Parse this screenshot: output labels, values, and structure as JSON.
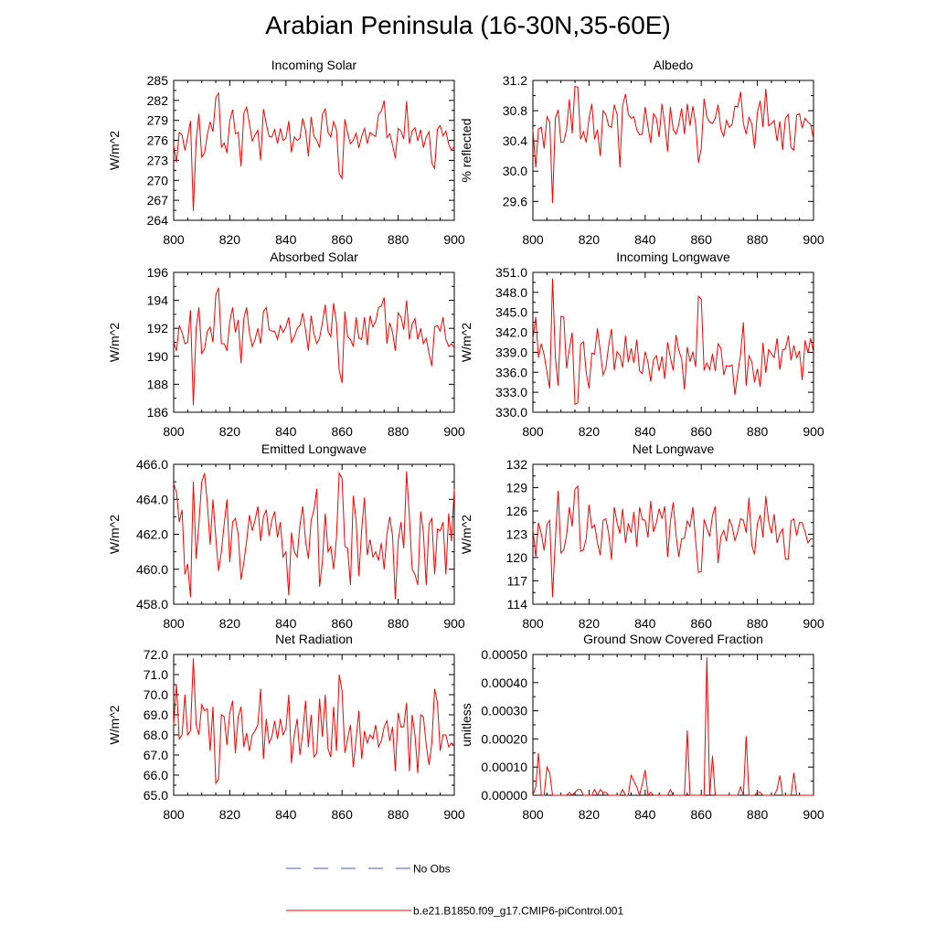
{
  "figure": {
    "title": "Arabian Peninsula (16-30N,35-60E)",
    "line_color": "#ff0000",
    "obs_color": "#4a5ab0"
  },
  "legend": {
    "obs_label": "No Obs",
    "model_label": "b.e21.B1850.f09_g17.CMIP6-piControl.001"
  },
  "chart_data": [
    {
      "type": "line",
      "title": "Incoming Solar",
      "ylabel": "W/m^2",
      "xlim": [
        800,
        900
      ],
      "ylim": [
        264,
        285
      ],
      "yticks": [
        "285",
        "282",
        "279",
        "276",
        "273",
        "270",
        "267",
        "264"
      ],
      "ytick_values": [
        285,
        282,
        279,
        276,
        273,
        270,
        267,
        264
      ],
      "xticks": [
        "800",
        "820",
        "840",
        "860",
        "880",
        "900"
      ],
      "xtick_values": [
        800,
        820,
        840,
        860,
        880,
        900
      ],
      "start_x": 800,
      "values": [
        275.3,
        272.7,
        277.2,
        276.8,
        274.5,
        276.5,
        278.9,
        265.4,
        276.0,
        280.0,
        273.5,
        274.1,
        276.8,
        278.8,
        277.3,
        282.4,
        283.1,
        275.0,
        275.6,
        274.1,
        279.0,
        280.6,
        277.0,
        277.2,
        272.1,
        280.1,
        281.0,
        278.5,
        275.9,
        276.8,
        277.5,
        273.0,
        280.7,
        278.5,
        276.6,
        276.5,
        277.6,
        275.5,
        277.8,
        276.0,
        276.3,
        278.9,
        274.2,
        276.5,
        276.0,
        276.3,
        279.3,
        277.5,
        273.6,
        279.5,
        276.6,
        276.0,
        274.9,
        279.9,
        280.7,
        277.2,
        276.5,
        278.8,
        277.6,
        271.0,
        270.3,
        279.2,
        277.1,
        275.5,
        276.0,
        277.1,
        274.9,
        276.6,
        277.8,
        275.5,
        277.2,
        276.8,
        276.6,
        279.9,
        280.4,
        282.0,
        276.4,
        277.0,
        275.3,
        273.3,
        277.8,
        277.4,
        276.2,
        281.9,
        275.5,
        277.4,
        277.9,
        275.9,
        277.6,
        274.9,
        276.5,
        277.3,
        272.6,
        271.8,
        277.7,
        278.2,
        276.7,
        277.4,
        275.4,
        274.5,
        275.1
      ]
    },
    {
      "type": "line",
      "title": "Albedo",
      "ylabel": "% reflected",
      "xlim": [
        800,
        900
      ],
      "ylim": [
        29.35,
        31.2
      ],
      "yticks": [
        "31.2",
        "30.8",
        "30.4",
        "30.0",
        "29.6"
      ],
      "ytick_values": [
        31.2,
        30.8,
        30.4,
        30.0,
        29.6
      ],
      "xticks": [
        "800",
        "820",
        "840",
        "860",
        "880",
        "900"
      ],
      "xtick_values": [
        800,
        820,
        840,
        860,
        880,
        900
      ],
      "start_x": 800,
      "values": [
        30.55,
        30.05,
        30.56,
        30.58,
        30.3,
        30.72,
        30.65,
        29.58,
        30.7,
        30.81,
        30.38,
        30.39,
        30.55,
        30.95,
        30.5,
        31.12,
        31.11,
        30.42,
        30.52,
        30.38,
        30.7,
        30.89,
        30.42,
        30.55,
        30.2,
        30.8,
        30.75,
        30.6,
        30.58,
        30.88,
        30.75,
        30.05,
        30.87,
        31.02,
        30.75,
        30.7,
        30.72,
        30.55,
        30.48,
        30.49,
        30.85,
        30.59,
        30.37,
        30.76,
        30.7,
        30.45,
        30.89,
        30.61,
        30.26,
        30.85,
        30.55,
        30.49,
        30.62,
        30.83,
        30.49,
        30.89,
        30.6,
        30.86,
        30.62,
        30.11,
        30.3,
        30.96,
        30.72,
        30.65,
        30.63,
        30.7,
        30.88,
        30.55,
        30.46,
        30.67,
        30.58,
        30.62,
        30.86,
        30.85,
        31.05,
        30.63,
        30.49,
        30.71,
        30.63,
        30.3,
        30.78,
        30.93,
        30.58,
        31.09,
        30.6,
        30.63,
        30.67,
        30.4,
        30.66,
        30.28,
        30.7,
        30.75,
        30.31,
        30.28,
        30.74,
        30.76,
        30.57,
        30.7,
        30.65,
        30.62,
        30.42
      ]
    },
    {
      "type": "line",
      "title": "Absorbed Solar",
      "ylabel": "W/m^2",
      "xlim": [
        800,
        900
      ],
      "ylim": [
        186,
        196
      ],
      "yticks": [
        "196",
        "194",
        "192",
        "190",
        "188",
        "186"
      ],
      "ytick_values": [
        196,
        194,
        192,
        190,
        188,
        186
      ],
      "xticks": [
        "800",
        "820",
        "840",
        "860",
        "880",
        "900"
      ],
      "xtick_values": [
        800,
        820,
        840,
        860,
        880,
        900
      ],
      "start_x": 800,
      "values": [
        191.0,
        190.4,
        192.2,
        191.7,
        190.9,
        191.0,
        193.3,
        186.5,
        192.0,
        193.5,
        190.2,
        190.5,
        191.8,
        192.1,
        191.0,
        194.4,
        194.9,
        190.9,
        190.9,
        190.4,
        192.5,
        193.5,
        191.7,
        192.6,
        189.5,
        192.7,
        193.5,
        191.7,
        190.7,
        191.2,
        192.0,
        190.9,
        193.2,
        193.5,
        191.9,
        191.8,
        191.8,
        191.2,
        192.2,
        191.7,
        192.1,
        192.8,
        191.0,
        191.4,
        192.0,
        192.2,
        193.1,
        191.9,
        190.4,
        192.9,
        191.6,
        190.9,
        191.3,
        192.4,
        193.7,
        191.8,
        191.4,
        193.8,
        192.4,
        189.0,
        188.1,
        193.2,
        191.4,
        191.2,
        190.7,
        192.8,
        191.3,
        191.2,
        192.8,
        190.8,
        192.9,
        192.1,
        192.5,
        193.5,
        193.6,
        194.2,
        190.9,
        192.4,
        191.7,
        190.4,
        193.1,
        192.8,
        191.9,
        194.0,
        191.2,
        192.3,
        192.7,
        191.2,
        192.0,
        190.9,
        191.3,
        190.2,
        189.3,
        192.1,
        192.2,
        191.8,
        192.8,
        191.2,
        190.7,
        190.9,
        190.6
      ]
    },
    {
      "type": "line",
      "title": "Incoming Longwave",
      "ylabel": "W/m^2",
      "xlim": [
        800,
        900
      ],
      "ylim": [
        330,
        351
      ],
      "yticks": [
        "351.0",
        "348.0",
        "345.0",
        "342.0",
        "339.0",
        "336.0",
        "333.0",
        "330.0"
      ],
      "ytick_values": [
        351,
        348,
        345,
        342,
        339,
        336,
        333,
        330
      ],
      "xticks": [
        "800",
        "820",
        "840",
        "860",
        "880",
        "900"
      ],
      "xtick_values": [
        800,
        820,
        840,
        860,
        880,
        900
      ],
      "start_x": 800,
      "values": [
        341.0,
        344.3,
        338.2,
        340.3,
        338.6,
        336.0,
        333.6,
        350.1,
        338.2,
        334.0,
        344.4,
        344.3,
        336.6,
        339.5,
        342.0,
        331.2,
        331.4,
        340.2,
        340.6,
        336.0,
        333.6,
        338.9,
        338.7,
        342.6,
        339.2,
        335.6,
        336.6,
        340.0,
        342.5,
        336.3,
        339.1,
        338.5,
        336.7,
        341.5,
        337.5,
        339.6,
        337.4,
        340.9,
        336.2,
        335.8,
        339.1,
        337.5,
        334.6,
        337.9,
        338.5,
        336.2,
        338.4,
        335.0,
        340.5,
        338.2,
        336.3,
        341.6,
        339.3,
        338.0,
        333.4,
        339.8,
        337.6,
        339.1,
        336.8,
        347.4,
        347.0,
        336.3,
        337.4,
        336.4,
        338.8,
        336.2,
        340.3,
        339.6,
        335.6,
        337.0,
        336.9,
        337.1,
        332.6,
        335.8,
        338.7,
        343.5,
        334.0,
        338.5,
        337.6,
        334.5,
        336.5,
        333.8,
        340.4,
        335.9,
        339.4,
        338.8,
        338.2,
        341.1,
        336.4,
        339.4,
        339.5,
        341.5,
        337.8,
        340.0,
        338.2,
        339.2,
        334.8,
        340.8,
        338.9,
        341.1,
        339.0
      ]
    },
    {
      "type": "line",
      "title": "Emitted Longwave",
      "ylabel": "W/m^2",
      "xlim": [
        800,
        900
      ],
      "ylim": [
        458,
        466
      ],
      "yticks": [
        "466.0",
        "464.0",
        "462.0",
        "460.0",
        "458.0"
      ],
      "ytick_values": [
        466,
        464,
        462,
        460,
        458
      ],
      "xticks": [
        "800",
        "820",
        "840",
        "860",
        "880",
        "900"
      ],
      "xtick_values": [
        800,
        820,
        840,
        860,
        880,
        900
      ],
      "start_x": 800,
      "values": [
        464.9,
        464.4,
        462.7,
        463.4,
        459.7,
        460.3,
        458.4,
        465.0,
        460.6,
        462.6,
        465.0,
        465.5,
        463.8,
        461.4,
        464.0,
        461.8,
        459.9,
        461.0,
        462.6,
        464.0,
        460.4,
        462.7,
        462.9,
        462.0,
        459.4,
        460.4,
        461.6,
        463.1,
        462.2,
        462.8,
        463.6,
        461.6,
        463.0,
        463.4,
        461.9,
        462.8,
        463.3,
        461.8,
        462.7,
        460.7,
        461.0,
        458.5,
        462.1,
        461.0,
        460.7,
        462.5,
        463.6,
        461.6,
        460.6,
        462.8,
        463.4,
        464.6,
        459.0,
        460.4,
        463.2,
        461.0,
        461.3,
        460.0,
        461.8,
        465.5,
        465.2,
        461.3,
        461.2,
        459.1,
        464.2,
        462.8,
        459.6,
        462.3,
        464.1,
        460.8,
        461.7,
        460.7,
        461.0,
        460.5,
        461.5,
        460.0,
        462.0,
        463.0,
        461.9,
        458.3,
        461.6,
        462.7,
        461.2,
        465.6,
        463.0,
        460.0,
        459.7,
        459.1,
        463.3,
        462.1,
        459.1,
        462.6,
        462.9,
        459.7,
        462.3,
        462.2,
        462.7,
        459.7,
        463.2,
        461.6,
        464.6
      ]
    },
    {
      "type": "line",
      "title": "Net Longwave",
      "ylabel": "W/m^2",
      "xlim": [
        800,
        900
      ],
      "ylim": [
        114,
        132
      ],
      "yticks": [
        "132",
        "129",
        "126",
        "123",
        "120",
        "117",
        "114"
      ],
      "ytick_values": [
        132,
        129,
        126,
        123,
        120,
        117,
        114
      ],
      "xticks": [
        "800",
        "820",
        "840",
        "860",
        "880",
        "900"
      ],
      "xtick_values": [
        800,
        820,
        840,
        860,
        880,
        900
      ],
      "start_x": 800,
      "values": [
        123.7,
        120.1,
        124.5,
        123.1,
        120.9,
        124.3,
        124.8,
        114.9,
        122.4,
        128.6,
        120.6,
        121.0,
        122.8,
        126.5,
        124.0,
        128.8,
        129.2,
        120.8,
        121.0,
        122.4,
        126.8,
        123.8,
        124.2,
        121.9,
        120.3,
        124.8,
        125.0,
        123.1,
        119.7,
        126.5,
        124.5,
        123.1,
        126.3,
        121.9,
        124.4,
        123.2,
        125.9,
        121.4,
        126.5,
        124.9,
        124.8,
        122.6,
        127.3,
        123.3,
        124.5,
        126.3,
        125.0,
        126.6,
        120.1,
        124.6,
        127.1,
        122.9,
        120.1,
        122.4,
        122.5,
        124.7,
        124.0,
        126.5,
        122.1,
        118.1,
        118.2,
        124.9,
        123.8,
        122.7,
        125.4,
        126.6,
        119.3,
        122.7,
        123.5,
        122.1,
        125.0,
        124.0,
        122.2,
        123.3,
        125.0,
        124.8,
        123.2,
        127.7,
        121.6,
        120.4,
        124.4,
        125.5,
        122.6,
        127.9,
        124.7,
        123.1,
        125.6,
        121.9,
        123.1,
        123.7,
        119.8,
        119.8,
        124.7,
        125.0,
        122.8,
        124.5,
        124.5,
        123.3,
        121.9,
        122.4,
        122.4
      ]
    },
    {
      "type": "line",
      "title": "Net Radiation",
      "ylabel": "W/m^2",
      "xlim": [
        800,
        900
      ],
      "ylim": [
        65,
        72
      ],
      "yticks": [
        "72.0",
        "71.0",
        "70.0",
        "69.0",
        "68.0",
        "67.0",
        "66.0",
        "65.0"
      ],
      "ytick_values": [
        72,
        71,
        70,
        69,
        68,
        67,
        66,
        65
      ],
      "xticks": [
        "800",
        "820",
        "840",
        "860",
        "880",
        "900"
      ],
      "xtick_values": [
        800,
        820,
        840,
        860,
        880,
        900
      ],
      "start_x": 800,
      "values": [
        68.5,
        70.5,
        67.8,
        68.0,
        70.0,
        68.0,
        68.2,
        71.8,
        68.5,
        68.0,
        69.5,
        69.2,
        69.3,
        67.2,
        69.4,
        65.6,
        65.8,
        69.0,
        68.9,
        67.5,
        69.1,
        69.7,
        67.1,
        68.9,
        69.4,
        67.4,
        68.1,
        67.2,
        68.0,
        68.2,
        68.5,
        70.3,
        66.8,
        68.8,
        67.6,
        67.9,
        68.7,
        67.8,
        68.8,
        68.0,
        68.3,
        70.0,
        66.6,
        68.0,
        68.8,
        67.0,
        68.1,
        69.7,
        67.4,
        69.0,
        66.9,
        67.1,
        69.8,
        67.9,
        70.0,
        67.3,
        66.9,
        69.4,
        67.2,
        71.0,
        70.2,
        67.1,
        67.8,
        68.5,
        66.4,
        67.8,
        69.2,
        66.8,
        68.2,
        67.6,
        68.0,
        67.8,
        68.5,
        67.4,
        67.7,
        68.4,
        68.7,
        67.7,
        68.4,
        66.2,
        69.1,
        68.4,
        68.4,
        69.6,
        66.2,
        69.0,
        68.0,
        66.1,
        69.0,
        68.9,
        67.5,
        66.5,
        67.6,
        70.3,
        69.6,
        67.2,
        68.0,
        68.0,
        67.4,
        67.6,
        67.5
      ]
    },
    {
      "type": "line",
      "title": "Ground Snow Covered Fraction",
      "ylabel": "unitless",
      "xlim": [
        800,
        900
      ],
      "ylim": [
        0,
        0.0005
      ],
      "yticks": [
        "0.00050",
        "0.00040",
        "0.00030",
        "0.00020",
        "0.00010",
        "0.00000"
      ],
      "ytick_values": [
        0.0005,
        0.0004,
        0.0003,
        0.0002,
        0.0001,
        0
      ],
      "xticks": [
        "800",
        "820",
        "840",
        "860",
        "880",
        "900"
      ],
      "xtick_values": [
        800,
        820,
        840,
        860,
        880,
        900
      ],
      "start_x": 800,
      "values": [
        0,
        3e-05,
        0.00015,
        0,
        0,
        0.0001,
        8e-05,
        0,
        0,
        0,
        0,
        0,
        0,
        1e-05,
        0,
        1e-05,
        2e-05,
        2e-05,
        0,
        0,
        0,
        0,
        2e-05,
        0,
        2e-05,
        1e-05,
        1e-05,
        0,
        0,
        0,
        0,
        0,
        2e-05,
        0,
        0,
        7e-05,
        5e-05,
        3e-05,
        0,
        4e-05,
        9e-05,
        0,
        1e-05,
        0,
        0,
        0,
        0,
        0,
        0,
        2e-05,
        0,
        0,
        0,
        0,
        0,
        0.00023,
        0,
        0,
        0,
        0,
        0,
        0,
        0.00049,
        0,
        0.00014,
        0,
        0,
        0,
        0,
        0,
        0,
        0,
        0,
        0,
        3e-05,
        0,
        0.00021,
        0,
        0,
        0,
        1e-05,
        1e-05,
        0,
        0,
        0,
        0,
        0,
        2e-05,
        7e-05,
        0,
        0,
        0,
        0,
        8e-05,
        0,
        0,
        0,
        0,
        0,
        0,
        0
      ]
    }
  ]
}
